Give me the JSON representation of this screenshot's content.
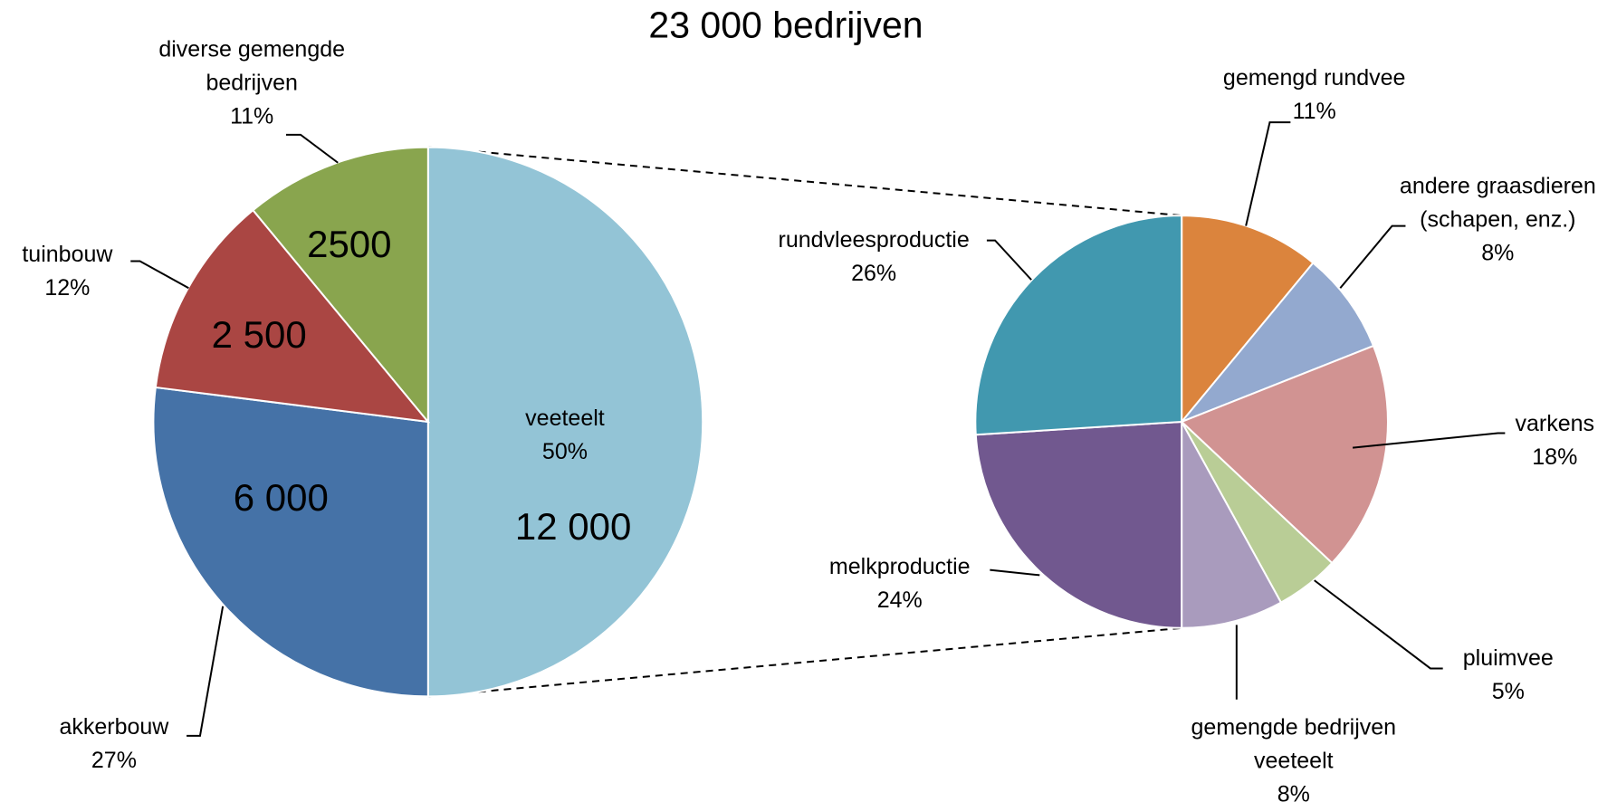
{
  "chart_data": {
    "type": "pie-of-pie",
    "title": "23 000 bedrijven",
    "pies": [
      {
        "categories": [
          "veeteelt",
          "akkerbouw",
          "tuinbouw",
          "diverse gemengde bedrijven"
        ],
        "values": [
          50,
          27,
          12,
          11
        ],
        "value_labels": [
          "50%",
          "27%",
          "12%",
          "11%"
        ],
        "counts": [
          12000,
          6000,
          2500,
          2500
        ],
        "count_labels": [
          "12 000",
          "6 000",
          "2 500",
          "2500"
        ],
        "colors": [
          "#93c4d6",
          "#4572a7",
          "#aa4643",
          "#89a54e"
        ]
      },
      {
        "categories": [
          "gemengd rundvee",
          "andere graasdieren (schapen, enz.)",
          "varkens",
          "pluimvee",
          "gemengde bedrijven veeteelt",
          "melkproductie",
          "rundvleesproductie"
        ],
        "values": [
          11,
          8,
          18,
          5,
          8,
          24,
          26
        ],
        "value_labels": [
          "11%",
          "8%",
          "18%",
          "5%",
          "8%",
          "24%",
          "26%"
        ],
        "colors": [
          "#db843d",
          "#93a9cf",
          "#d19392",
          "#b9cd96",
          "#a99bbd",
          "#71588f",
          "#4198af"
        ]
      }
    ]
  }
}
